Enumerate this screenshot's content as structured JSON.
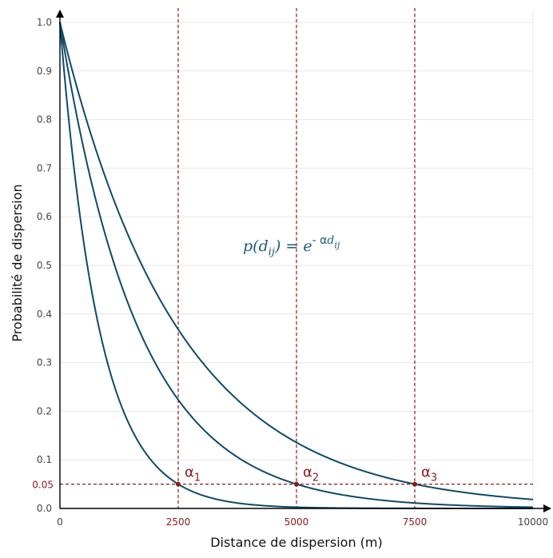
{
  "chart_data": {
    "type": "line",
    "xlabel": "Distance de dispersion (m)",
    "ylabel": "Probabilité de dispersion",
    "xlim": [
      0,
      10000
    ],
    "ylim": [
      0,
      1
    ],
    "grid": true,
    "x_ticks": [
      {
        "value": 0,
        "label": "0"
      },
      {
        "value": 2500,
        "label": "2500"
      },
      {
        "value": 5000,
        "label": "5000"
      },
      {
        "value": 7500,
        "label": "7500"
      },
      {
        "value": 10000,
        "label": "10000"
      }
    ],
    "y_ticks": [
      {
        "value": 0.0,
        "label": "0.0"
      },
      {
        "value": 0.1,
        "label": "0.1"
      },
      {
        "value": 0.2,
        "label": "0.2"
      },
      {
        "value": 0.3,
        "label": "0.3"
      },
      {
        "value": 0.4,
        "label": "0.4"
      },
      {
        "value": 0.5,
        "label": "0.5"
      },
      {
        "value": 0.6,
        "label": "0.6"
      },
      {
        "value": 0.7,
        "label": "0.7"
      },
      {
        "value": 0.8,
        "label": "0.8"
      },
      {
        "value": 0.9,
        "label": "0.9"
      },
      {
        "value": 1.0,
        "label": "1.0"
      }
    ],
    "threshold": {
      "value": 0.05,
      "label": "0.05"
    },
    "series": [
      {
        "decay_distance": 2500,
        "alpha_label": "α",
        "alpha_sub": "1"
      },
      {
        "decay_distance": 5000,
        "alpha_label": "α",
        "alpha_sub": "2"
      },
      {
        "decay_distance": 7500,
        "alpha_label": "α",
        "alpha_sub": "3"
      }
    ],
    "annotation": {
      "lhs": "p(d",
      "lhs_sub": "ij",
      "mid": ") = e",
      "exp": "- α",
      "exp_var": "d",
      "exp_sub": "ij"
    },
    "colors": {
      "curve": "#0e4a6b",
      "threshold": "#8b1a1a",
      "grid": "#e6e6e6",
      "axis": "#000000"
    }
  }
}
